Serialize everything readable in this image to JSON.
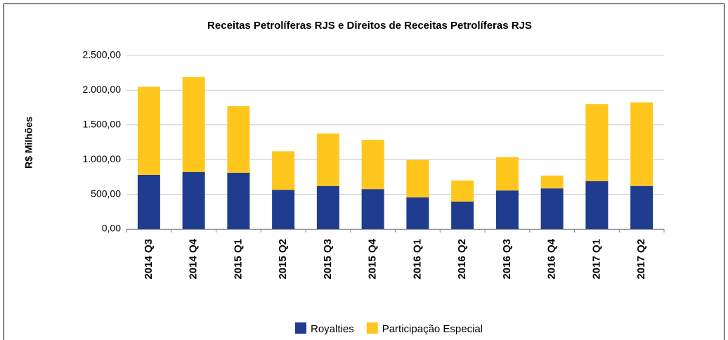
{
  "chart_data": {
    "type": "stacked_bar",
    "title": "Receitas Petrolíferas RJS e Direitos de Receitas Petrolíferas RJS",
    "y_label": "R$ Milhões",
    "categories": [
      "2014 Q3",
      "2014 Q4",
      "2015 Q1",
      "2015 Q2",
      "2015 Q3",
      "2015 Q4",
      "2016 Q1",
      "2016 Q2",
      "2016 Q3",
      "2016 Q4",
      "2017 Q1",
      "2017 Q2"
    ],
    "series": [
      {
        "name": "Royalties",
        "color": "#1f3c8f",
        "values": [
          780,
          820,
          810,
          565,
          620,
          575,
          455,
          395,
          555,
          585,
          690,
          620
        ]
      },
      {
        "name": "Participação Especial",
        "color": "#ffc61e",
        "values": [
          1270,
          1370,
          960,
          555,
          755,
          710,
          540,
          305,
          480,
          185,
          1110,
          1205
        ]
      }
    ],
    "ylim": [
      0,
      2500
    ],
    "yticks": [
      {
        "value": 0,
        "label": "0,00"
      },
      {
        "value": 500,
        "label": "500,00"
      },
      {
        "value": 1000,
        "label": "1.000,00"
      },
      {
        "value": 1500,
        "label": "1.500,00"
      },
      {
        "value": 2000,
        "label": "2.000,00"
      },
      {
        "value": 2500,
        "label": "2.500,00"
      }
    ],
    "grid": true,
    "legend": "bottom"
  }
}
